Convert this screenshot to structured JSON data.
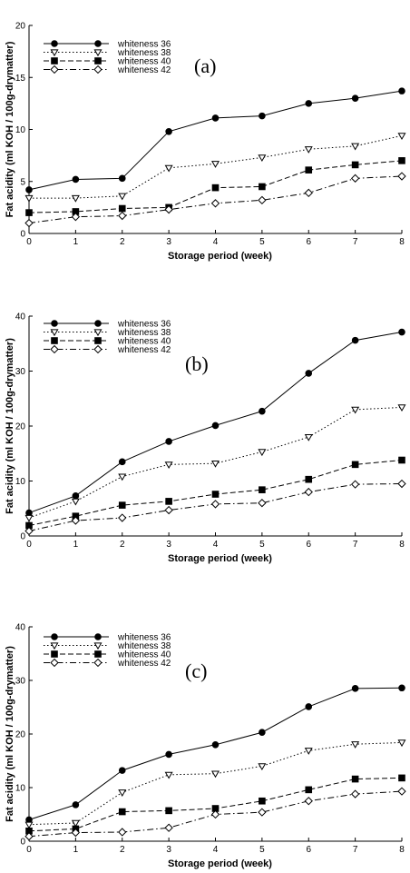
{
  "chart_data": [
    {
      "type": "line",
      "panel_label": "(a)",
      "xlabel": "Storage period (week)",
      "ylabel": "Fat acidity (ml KOH / 100g-drymatter)",
      "x": [
        0,
        1,
        2,
        3,
        4,
        5,
        6,
        7,
        8
      ],
      "xlim": [
        0,
        8
      ],
      "ylim": [
        0,
        20
      ],
      "xticks": [
        "0",
        "1",
        "2",
        "3",
        "4",
        "5",
        "6",
        "7",
        "8"
      ],
      "yticks": [
        "0",
        "5",
        "10",
        "15",
        "20"
      ],
      "legend_position": "top-left",
      "series": [
        {
          "name": "whiteness 36",
          "marker": "filled-circle",
          "dash": "solid",
          "values": [
            4.2,
            5.2,
            5.3,
            9.8,
            11.1,
            11.3,
            12.5,
            13.0,
            13.7
          ]
        },
        {
          "name": "whiteness 38",
          "marker": "open-triangle-down",
          "dash": "dotted",
          "values": [
            3.4,
            3.4,
            3.6,
            6.3,
            6.7,
            7.3,
            8.1,
            8.4,
            9.4
          ]
        },
        {
          "name": "whiteness 40",
          "marker": "filled-square",
          "dash": "dashed",
          "values": [
            2.0,
            2.1,
            2.4,
            2.5,
            4.4,
            4.5,
            6.1,
            6.6,
            7.0
          ]
        },
        {
          "name": "whiteness 42",
          "marker": "open-diamond",
          "dash": "dash-dot",
          "values": [
            1.0,
            1.6,
            1.7,
            2.3,
            2.9,
            3.2,
            3.9,
            5.3,
            5.5
          ]
        }
      ]
    },
    {
      "type": "line",
      "panel_label": "(b)",
      "xlabel": "Storage period (week)",
      "ylabel": "Fat acidity (ml KOH / 100g-drymatter)",
      "x": [
        0,
        1,
        2,
        3,
        4,
        5,
        6,
        7,
        8
      ],
      "xlim": [
        0,
        8
      ],
      "ylim": [
        0,
        40
      ],
      "xticks": [
        "0",
        "1",
        "2",
        "3",
        "4",
        "5",
        "6",
        "7",
        "8"
      ],
      "yticks": [
        "0",
        "10",
        "20",
        "30",
        "40"
      ],
      "legend_position": "top-left",
      "series": [
        {
          "name": "whiteness 36",
          "marker": "filled-circle",
          "dash": "solid",
          "values": [
            4.2,
            7.3,
            13.5,
            17.2,
            20.1,
            22.7,
            29.6,
            35.6,
            37.1
          ]
        },
        {
          "name": "whiteness 38",
          "marker": "open-triangle-down",
          "dash": "dotted",
          "values": [
            3.3,
            6.3,
            10.8,
            13.0,
            13.2,
            15.3,
            18.0,
            23.0,
            23.4
          ]
        },
        {
          "name": "whiteness 40",
          "marker": "filled-square",
          "dash": "dashed",
          "values": [
            1.9,
            3.6,
            5.6,
            6.3,
            7.6,
            8.4,
            10.3,
            13.0,
            13.8
          ]
        },
        {
          "name": "whiteness 42",
          "marker": "open-diamond",
          "dash": "dash-dot",
          "values": [
            0.9,
            2.8,
            3.3,
            4.7,
            5.8,
            6.0,
            8.0,
            9.4,
            9.5
          ]
        }
      ]
    },
    {
      "type": "line",
      "panel_label": "(c)",
      "xlabel": "Storage period (week)",
      "ylabel": "Fat acidity (ml KOH / 100g-drymatter)",
      "x": [
        0,
        1,
        2,
        3,
        4,
        5,
        6,
        7,
        8
      ],
      "xlim": [
        0,
        8
      ],
      "ylim": [
        0,
        40
      ],
      "xticks": [
        "0",
        "1",
        "2",
        "3",
        "4",
        "5",
        "6",
        "7",
        "8"
      ],
      "yticks": [
        "0",
        "10",
        "20",
        "30",
        "40"
      ],
      "legend_position": "top-left",
      "series": [
        {
          "name": "whiteness 36",
          "marker": "filled-circle",
          "dash": "solid",
          "values": [
            4.0,
            6.8,
            13.2,
            16.2,
            18.0,
            20.3,
            25.1,
            28.5,
            28.6
          ]
        },
        {
          "name": "whiteness 38",
          "marker": "open-triangle-down",
          "dash": "dotted",
          "values": [
            3.1,
            3.4,
            9.1,
            12.4,
            12.6,
            14.0,
            16.9,
            18.1,
            18.4
          ]
        },
        {
          "name": "whiteness 40",
          "marker": "filled-square",
          "dash": "dashed",
          "values": [
            1.9,
            2.3,
            5.5,
            5.7,
            6.1,
            7.5,
            9.6,
            11.6,
            11.8
          ]
        },
        {
          "name": "whiteness 42",
          "marker": "open-diamond",
          "dash": "dash-dot",
          "values": [
            0.9,
            1.6,
            1.7,
            2.5,
            5.0,
            5.4,
            7.5,
            8.8,
            9.3
          ]
        }
      ]
    }
  ]
}
